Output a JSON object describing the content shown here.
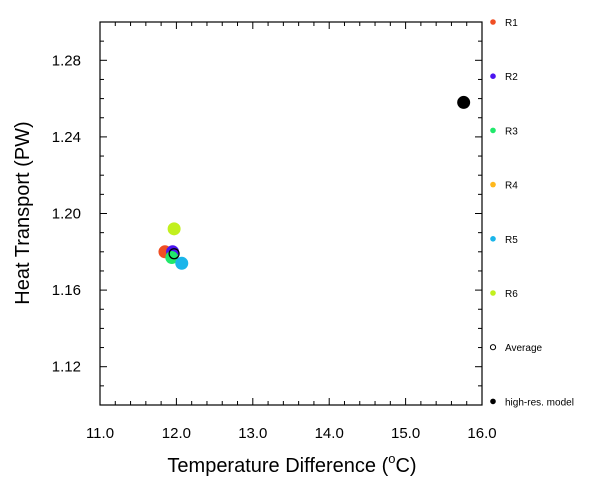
{
  "chart_data": {
    "type": "scatter",
    "xlabel": "Temperature Difference (",
    "xlabel_super": "o",
    "xlabel_suffix": "C)",
    "ylabel": "Heat Transport (PW)",
    "xlim": [
      11.0,
      16.0
    ],
    "ylim": [
      1.1,
      1.3
    ],
    "x_ticks": [
      "11.0",
      "12.0",
      "13.0",
      "14.0",
      "15.0",
      "16.0"
    ],
    "y_ticks": [
      "1.12",
      "1.16",
      "1.20",
      "1.24",
      "1.28"
    ],
    "legend_position": "right",
    "series": [
      {
        "name": "R1",
        "color": "#f04e23",
        "marker": "filled",
        "x": 11.85,
        "y": 1.18
      },
      {
        "name": "R2",
        "color": "#4b14f0",
        "marker": "filled",
        "x": 11.95,
        "y": 1.18
      },
      {
        "name": "R3",
        "color": "#20e86b",
        "marker": "filled",
        "x": 11.94,
        "y": 1.177
      },
      {
        "name": "R4",
        "color": "#ffb81c",
        "marker": "filled",
        "x": null,
        "y": null
      },
      {
        "name": "R5",
        "color": "#1ab5ea",
        "marker": "filled",
        "x": 12.07,
        "y": 1.174
      },
      {
        "name": "R6",
        "color": "#c2f01e",
        "marker": "filled",
        "x": 11.97,
        "y": 1.192
      },
      {
        "name": "Average",
        "color": "#000000",
        "marker": "open",
        "x": 11.97,
        "y": 1.179
      },
      {
        "name": "high-res. model",
        "color": "#000000",
        "marker": "filled",
        "x": 15.76,
        "y": 1.258
      }
    ]
  }
}
